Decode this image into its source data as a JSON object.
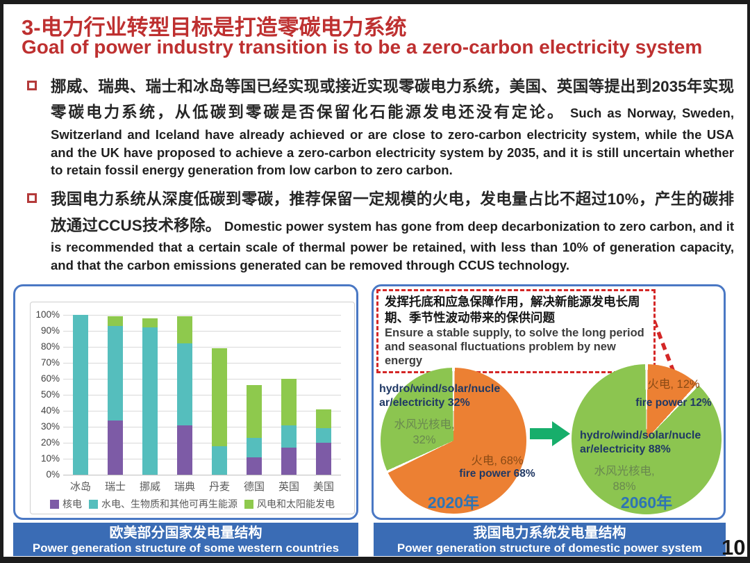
{
  "slide": {
    "title_cn": "3-电力行业转型目标是打造零碳电力系统",
    "title_en": "Goal of power industry transition is to be a zero-carbon electricity system",
    "page_number": "10"
  },
  "bullets": [
    {
      "cn": "挪威、瑞典、瑞士和冰岛等国已经实现或接近实现零碳电力系统，美国、英国等提出到2035年实现零碳电力系统，从低碳到零碳是否保留化石能源发电还没有定论。",
      "en": "Such as Norway, Sweden, Switzerland and Iceland have already achieved or are close to zero-carbon electricity system, while the USA and the UK have proposed to achieve a zero-carbon electricity system by 2035, and it is still uncertain whether to retain fossil energy generation from low carbon to zero carbon."
    },
    {
      "cn": "我国电力系统从深度低碳到零碳，推荐保留一定规模的火电，发电量占比不超过10%，产生的碳排放通过CCUS技术移除。",
      "en": "Domestic power system has gone from deep decarbonization to zero carbon, and it is recommended that a certain scale of thermal power be retained, with less than 10% of generation capacity, and that the carbon emissions generated can be removed through CCUS technology."
    }
  ],
  "left_panel": {
    "caption_cn": "欧美部分国家发电量结构",
    "caption_en": "Power generation structure of some western countries"
  },
  "right_panel": {
    "callout_cn": "发挥托底和应急保障作用，解决新能源发电长周期、季节性波动带来的保供问题",
    "callout_en": "Ensure a stable supply, to solve the long period and seasonal fluctuations problem by new energy",
    "caption_cn": "我国电力系统发电量结构",
    "caption_en": "Power generation structure of domestic power system"
  },
  "colors": {
    "title_red": "#be3030",
    "panel_border_blue": "#4a78c4",
    "caption_blue": "#3a6cb5",
    "callout_red": "#d42727",
    "arrow_green": "#17ae6b",
    "year_blue": "#2e74b5"
  },
  "chart_data": [
    {
      "type": "bar",
      "stacked": true,
      "title": "",
      "categories": [
        "冰岛",
        "瑞士",
        "挪威",
        "瑞典",
        "丹麦",
        "德国",
        "英国",
        "美国"
      ],
      "series": [
        {
          "name": "核电",
          "color": "#7d5ba6",
          "values": [
            0,
            34,
            0,
            31,
            0,
            11,
            17,
            20
          ]
        },
        {
          "name": "水电、生物质和其他可再生能源",
          "color": "#55bebd",
          "values": [
            100,
            59,
            92,
            51,
            18,
            12,
            14,
            9
          ]
        },
        {
          "name": "风电和太阳能发电",
          "color": "#8ec94d",
          "values": [
            0,
            6,
            6,
            17,
            61,
            33,
            29,
            12
          ]
        }
      ],
      "ylim": [
        0,
        100
      ],
      "yticks": [
        "100%",
        "90%",
        "80%",
        "70%",
        "60%",
        "50%",
        "40%",
        "30%",
        "20%",
        "10%",
        "0%"
      ],
      "grid": true,
      "legend_position": "bottom"
    },
    {
      "type": "pie",
      "title": "2020年",
      "slices": [
        {
          "name_cn": "火电, 68%",
          "name_en": "fire power 68%",
          "value": 68,
          "color": "#ec8033"
        },
        {
          "name_en": "hydro/wind/solar/nuclear/electricity 32%",
          "name_cn": "水风光核电, 32%",
          "value": 32,
          "color": "#8cc550"
        }
      ]
    },
    {
      "type": "pie",
      "title": "2060年",
      "slices": [
        {
          "name_cn": "火电, 12%",
          "name_en": "fire power 12%",
          "value": 12,
          "color": "#ec8033"
        },
        {
          "name_en": "hydro/wind/solar/nuclear/electricity 88%",
          "name_cn": "水风光核电, 88%",
          "value": 88,
          "color": "#8cc550"
        }
      ]
    }
  ]
}
